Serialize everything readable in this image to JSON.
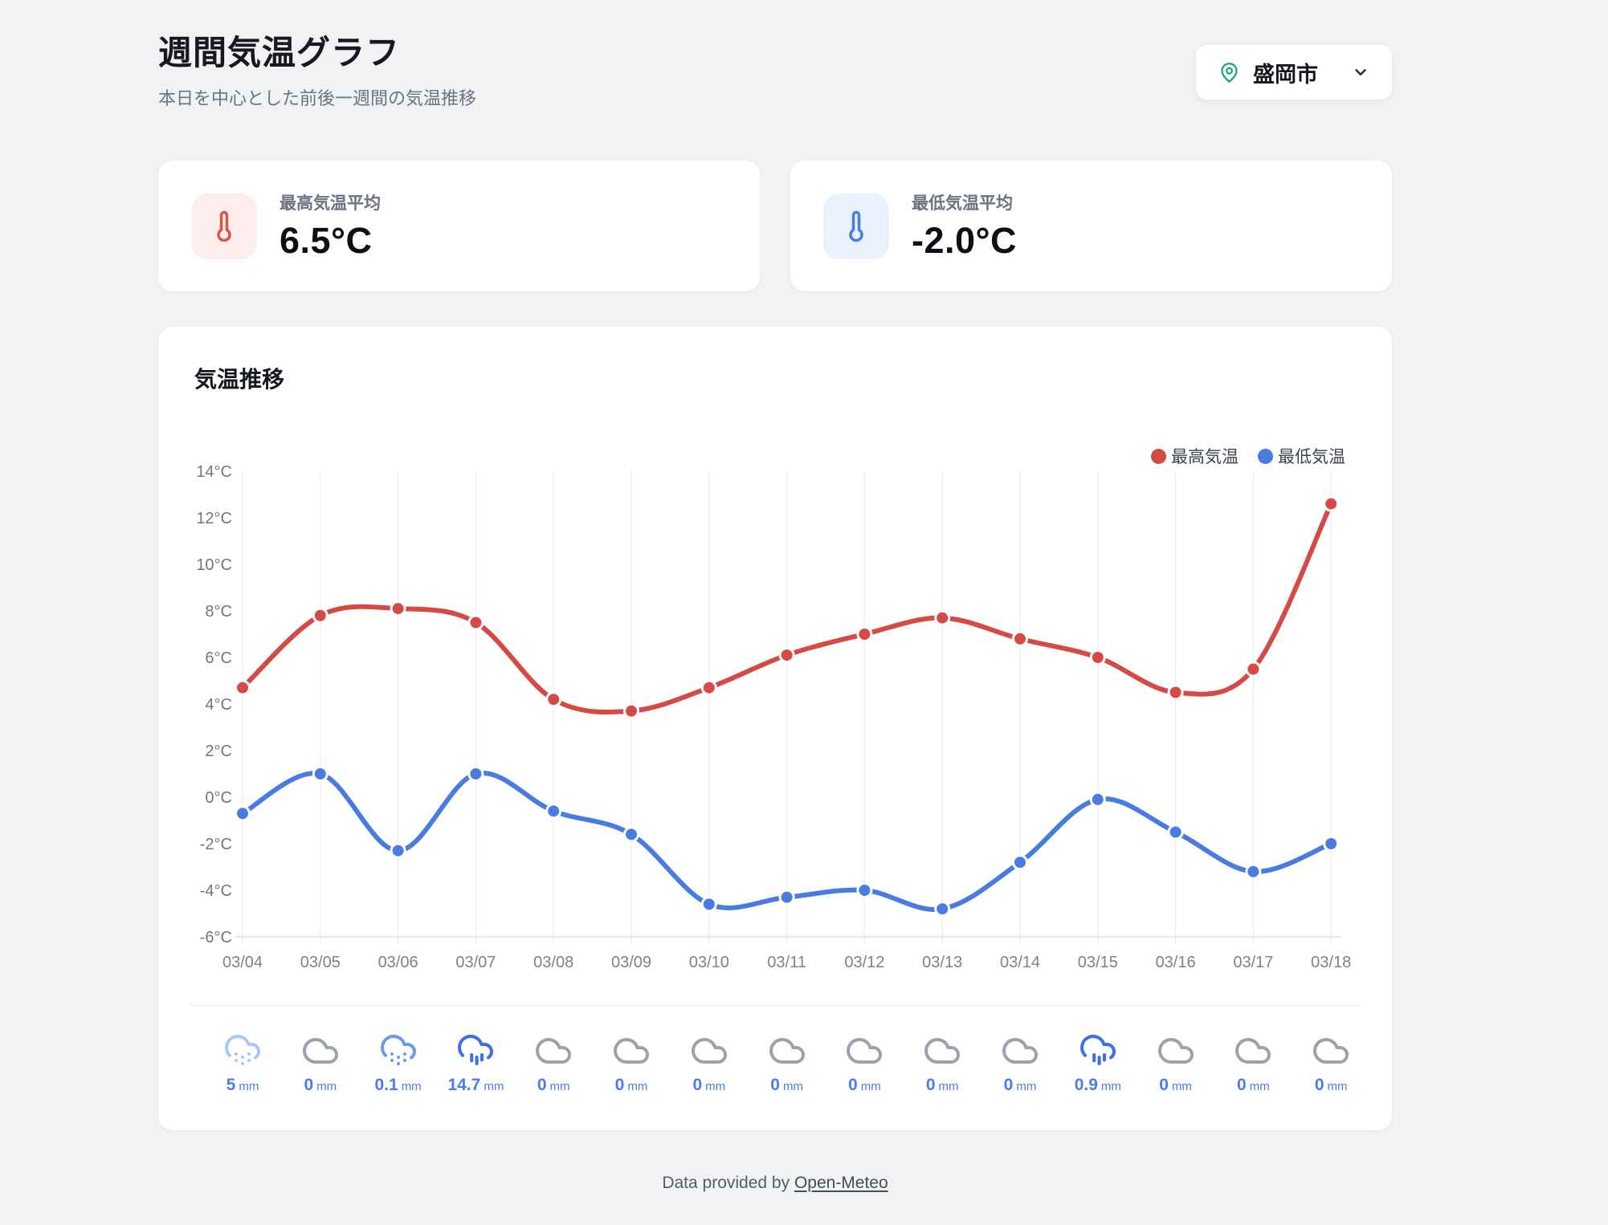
{
  "header": {
    "title": "週間気温グラフ",
    "subtitle": "本日を中心とした前後一週間の気温推移",
    "location": {
      "name": "盛岡市",
      "pin_color": "#17a673"
    }
  },
  "stats": {
    "high": {
      "label": "最高気温平均",
      "value": "6.5°C",
      "accent": "#e0524a",
      "icon_bg": "#fdeeed"
    },
    "low": {
      "label": "最低気温平均",
      "value": "-2.0°C",
      "accent": "#4a7ce2",
      "icon_bg": "#e9f1fd"
    }
  },
  "chart_card": {
    "title": "気温推移"
  },
  "chart_data": {
    "type": "line",
    "x": [
      "03/04",
      "03/05",
      "03/06",
      "03/07",
      "03/08",
      "03/09",
      "03/10",
      "03/11",
      "03/12",
      "03/13",
      "03/14",
      "03/15",
      "03/16",
      "03/17",
      "03/18"
    ],
    "series": [
      {
        "name": "最高気温",
        "color": "#d64a45",
        "values": [
          4.7,
          7.8,
          8.1,
          7.5,
          4.2,
          3.7,
          4.7,
          6.1,
          7.0,
          7.7,
          6.8,
          6.0,
          4.5,
          5.5,
          12.6
        ]
      },
      {
        "name": "最低気温",
        "color": "#4a7be0",
        "values": [
          -0.7,
          1.0,
          -2.3,
          1.0,
          -0.6,
          -1.6,
          -4.6,
          -4.3,
          -4.0,
          -4.8,
          -2.8,
          -0.1,
          -1.5,
          -3.2,
          -2.0
        ]
      }
    ],
    "ylim": [
      -6,
      14
    ],
    "ytick_step": 2,
    "ytick_suffix": "°C",
    "grid": "vertical-only",
    "legend_position": "top-right",
    "gridline_color": "#ebedef",
    "axisline_color": "#dddfe4"
  },
  "precipitation": {
    "unit": "mm",
    "value_color": "#4a7cee",
    "icon_colors": {
      "cloud": "#9ba2ad",
      "snow": "#699aef",
      "snow-light": "#abc8f4",
      "rain": "#3d70e4"
    },
    "days": [
      {
        "date": "03/04",
        "icon": "snow-light",
        "value": "5"
      },
      {
        "date": "03/05",
        "icon": "cloud",
        "value": "0"
      },
      {
        "date": "03/06",
        "icon": "snow",
        "value": "0.1"
      },
      {
        "date": "03/07",
        "icon": "rain",
        "value": "14.7"
      },
      {
        "date": "03/08",
        "icon": "cloud",
        "value": "0"
      },
      {
        "date": "03/09",
        "icon": "cloud",
        "value": "0"
      },
      {
        "date": "03/10",
        "icon": "cloud",
        "value": "0"
      },
      {
        "date": "03/11",
        "icon": "cloud",
        "value": "0"
      },
      {
        "date": "03/12",
        "icon": "cloud",
        "value": "0"
      },
      {
        "date": "03/13",
        "icon": "cloud",
        "value": "0"
      },
      {
        "date": "03/14",
        "icon": "cloud",
        "value": "0"
      },
      {
        "date": "03/15",
        "icon": "rain",
        "value": "0.9"
      },
      {
        "date": "03/16",
        "icon": "cloud",
        "value": "0"
      },
      {
        "date": "03/17",
        "icon": "cloud",
        "value": "0"
      },
      {
        "date": "03/18",
        "icon": "cloud",
        "value": "0"
      }
    ]
  },
  "footer": {
    "prefix": "Data provided by ",
    "link_label": "Open-Meteo"
  }
}
